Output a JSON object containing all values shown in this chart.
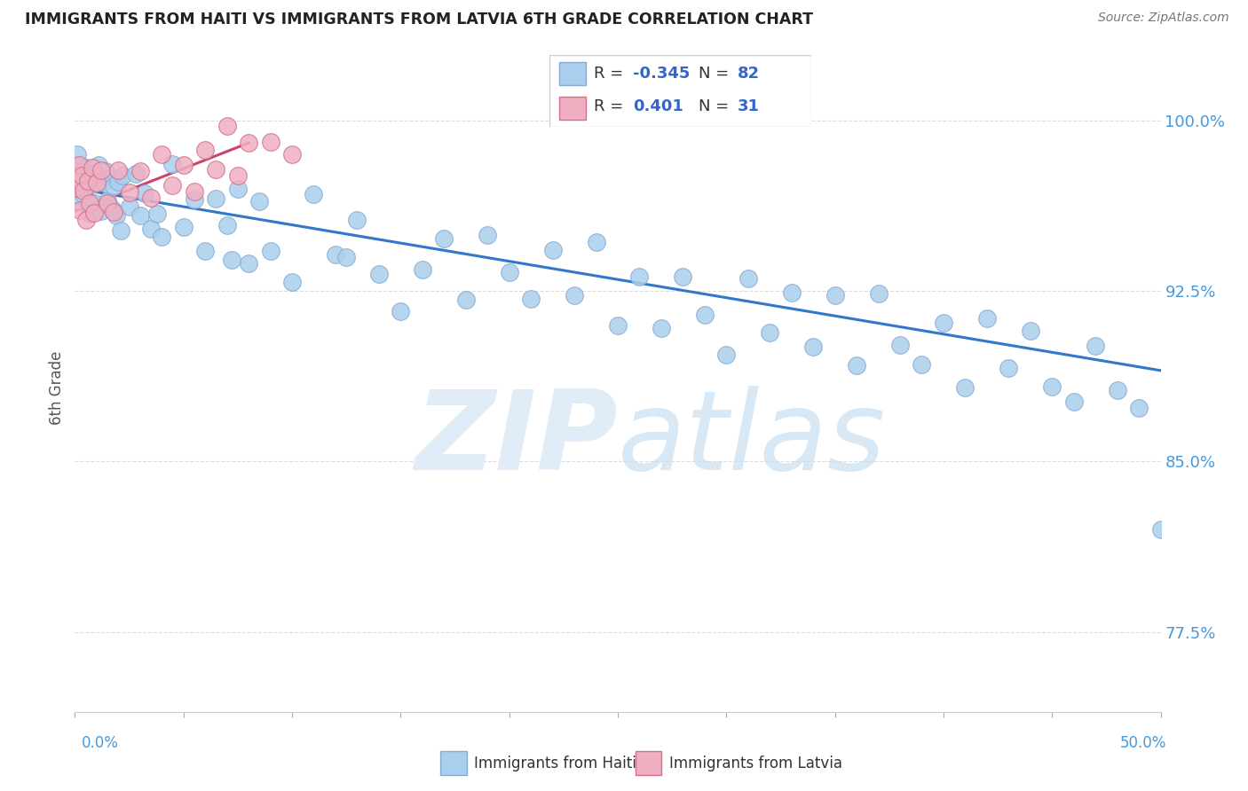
{
  "title": "IMMIGRANTS FROM HAITI VS IMMIGRANTS FROM LATVIA 6TH GRADE CORRELATION CHART",
  "source": "Source: ZipAtlas.com",
  "ylabel": "6th Grade",
  "yticks": [
    77.5,
    85.0,
    92.5,
    100.0
  ],
  "xlim": [
    0.0,
    50.0
  ],
  "ylim": [
    74.0,
    102.5
  ],
  "haiti_r": -0.345,
  "haiti_n": 82,
  "latvia_r": 0.401,
  "latvia_n": 31,
  "haiti_color": "#aacfee",
  "latvia_color": "#f0afc0",
  "haiti_edge_color": "#88aad0",
  "latvia_edge_color": "#d07090",
  "haiti_line_color": "#3377cc",
  "latvia_line_color": "#cc4466",
  "watermark_color": "#ddeeff",
  "grid_color": "#dddddd",
  "ytick_color": "#4499dd",
  "xtick_color": "#4499dd"
}
